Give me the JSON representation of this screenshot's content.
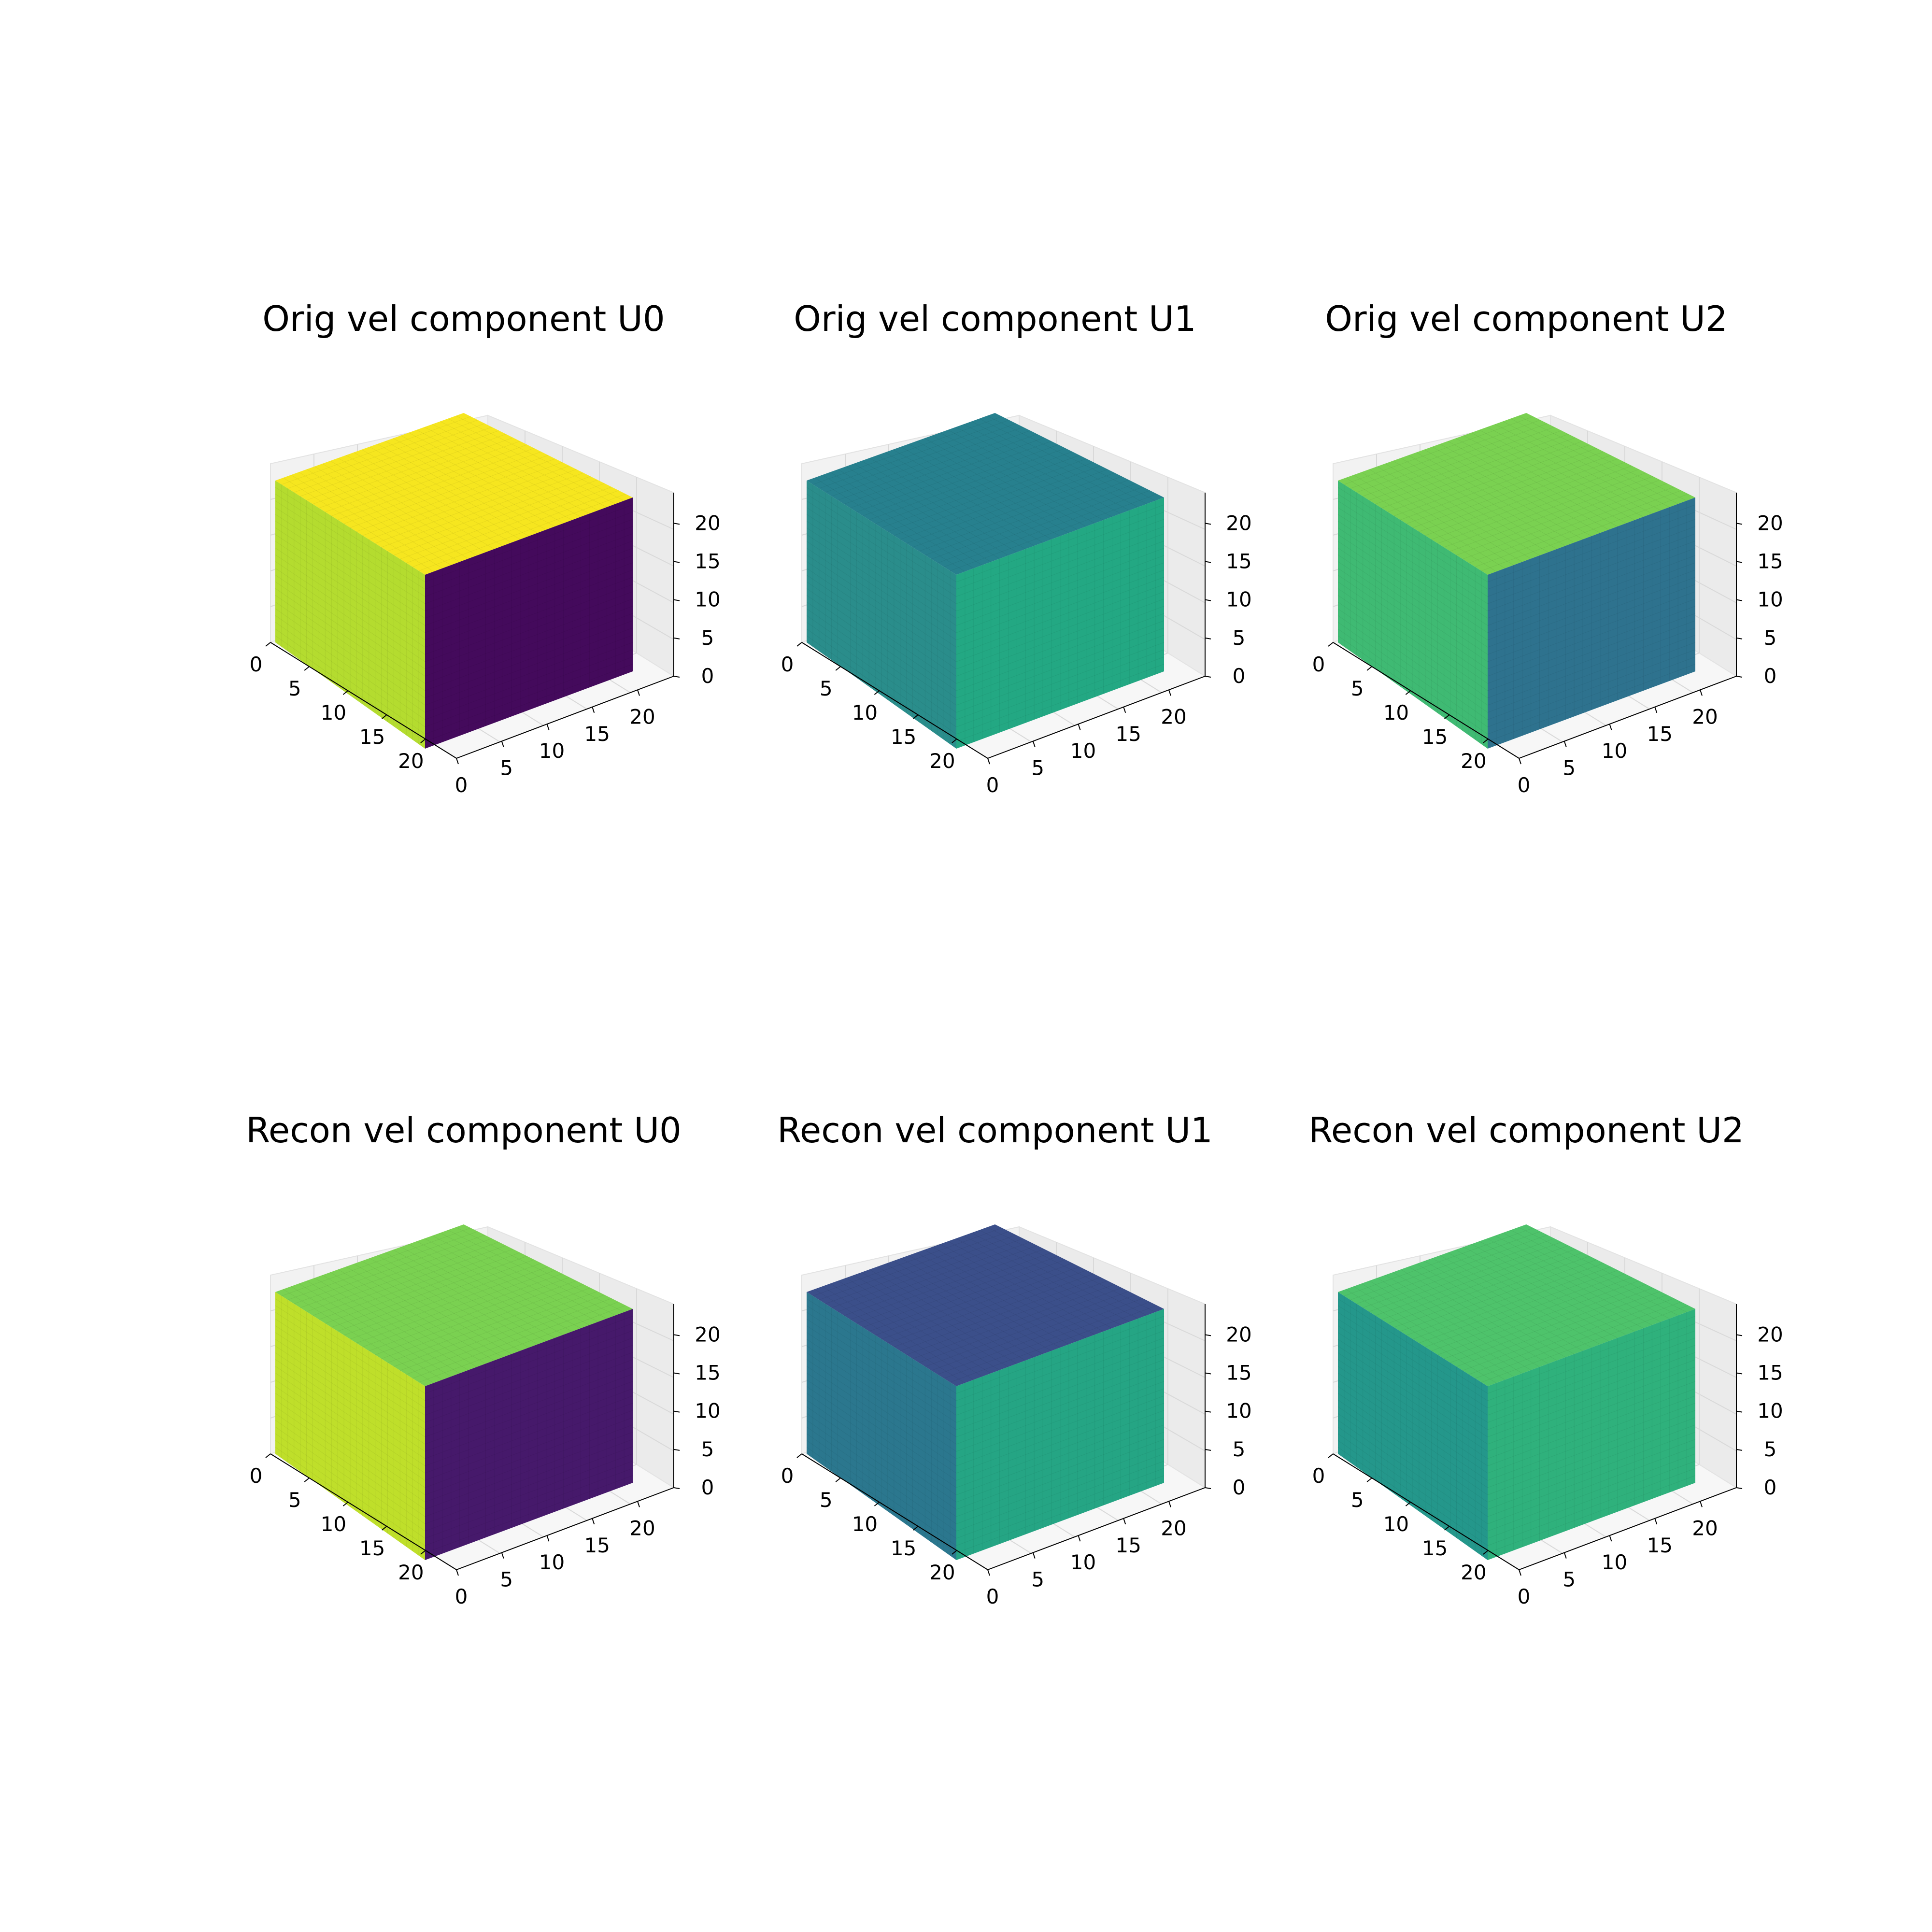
{
  "figure": {
    "panels": [
      {
        "id": "orig-u0",
        "title": "Orig vel component U0",
        "top": "#f6e61f",
        "front": "#440a5c",
        "side": "#b4dc2f"
      },
      {
        "id": "orig-u1",
        "title": "Orig vel component U1",
        "top": "#27808e",
        "front": "#23a883",
        "side": "#2a8d8b"
      },
      {
        "id": "orig-u2",
        "title": "Orig vel component U2",
        "top": "#7ad151",
        "front": "#2e728e",
        "side": "#3fba73"
      },
      {
        "id": "recon-u0",
        "title": "Recon vel component U0",
        "top": "#7ad151",
        "front": "#46196b",
        "side": "#bfdf2a"
      },
      {
        "id": "recon-u1",
        "title": "Recon vel component U1",
        "top": "#3b4f8a",
        "front": "#25a584",
        "side": "#2b778e"
      },
      {
        "id": "recon-u2",
        "title": "Recon vel component U2",
        "top": "#4ec36b",
        "front": "#2fb17c",
        "side": "#24978b"
      }
    ]
  },
  "chart_data": [
    {
      "type": "voxel-3d",
      "title": "Orig vel component U0",
      "colormap": "viridis",
      "x_ticks": [
        "0",
        "5",
        "10",
        "15",
        "20"
      ],
      "y_ticks": [
        "0",
        "5",
        "10",
        "15",
        "20"
      ],
      "z_ticks": [
        "0",
        "5",
        "10",
        "15",
        "20"
      ],
      "xlim": [
        0,
        24
      ],
      "ylim": [
        0,
        24
      ],
      "zlim": [
        0,
        24
      ],
      "grid": true
    },
    {
      "type": "voxel-3d",
      "title": "Orig vel component U1",
      "colormap": "viridis",
      "x_ticks": [
        "0",
        "5",
        "10",
        "15",
        "20"
      ],
      "y_ticks": [
        "0",
        "5",
        "10",
        "15",
        "20"
      ],
      "z_ticks": [
        "0",
        "5",
        "10",
        "15",
        "20"
      ],
      "xlim": [
        0,
        24
      ],
      "ylim": [
        0,
        24
      ],
      "zlim": [
        0,
        24
      ],
      "grid": true
    },
    {
      "type": "voxel-3d",
      "title": "Orig vel component U2",
      "colormap": "viridis",
      "x_ticks": [
        "0",
        "5",
        "10",
        "15",
        "20"
      ],
      "y_ticks": [
        "0",
        "5",
        "10",
        "15",
        "20"
      ],
      "z_ticks": [
        "0",
        "5",
        "10",
        "15",
        "20"
      ],
      "xlim": [
        0,
        24
      ],
      "ylim": [
        0,
        24
      ],
      "zlim": [
        0,
        24
      ],
      "grid": true
    },
    {
      "type": "voxel-3d",
      "title": "Recon vel component U0",
      "colormap": "viridis",
      "x_ticks": [
        "0",
        "5",
        "10",
        "15",
        "20"
      ],
      "y_ticks": [
        "0",
        "5",
        "10",
        "15",
        "20"
      ],
      "z_ticks": [
        "0",
        "5",
        "10",
        "15",
        "20"
      ],
      "xlim": [
        0,
        24
      ],
      "ylim": [
        0,
        24
      ],
      "zlim": [
        0,
        24
      ],
      "grid": true
    },
    {
      "type": "voxel-3d",
      "title": "Recon vel component U1",
      "colormap": "viridis",
      "x_ticks": [
        "0",
        "5",
        "10",
        "15",
        "20"
      ],
      "y_ticks": [
        "0",
        "5",
        "10",
        "15",
        "20"
      ],
      "z_ticks": [
        "0",
        "5",
        "10",
        "15",
        "20"
      ],
      "xlim": [
        0,
        24
      ],
      "ylim": [
        0,
        24
      ],
      "zlim": [
        0,
        24
      ],
      "grid": true
    },
    {
      "type": "voxel-3d",
      "title": "Recon vel component U2",
      "colormap": "viridis",
      "x_ticks": [
        "0",
        "5",
        "10",
        "15",
        "20"
      ],
      "y_ticks": [
        "0",
        "5",
        "10",
        "15",
        "20"
      ],
      "z_ticks": [
        "0",
        "5",
        "10",
        "15",
        "20"
      ],
      "xlim": [
        0,
        24
      ],
      "ylim": [
        0,
        24
      ],
      "zlim": [
        0,
        24
      ],
      "grid": true
    }
  ]
}
